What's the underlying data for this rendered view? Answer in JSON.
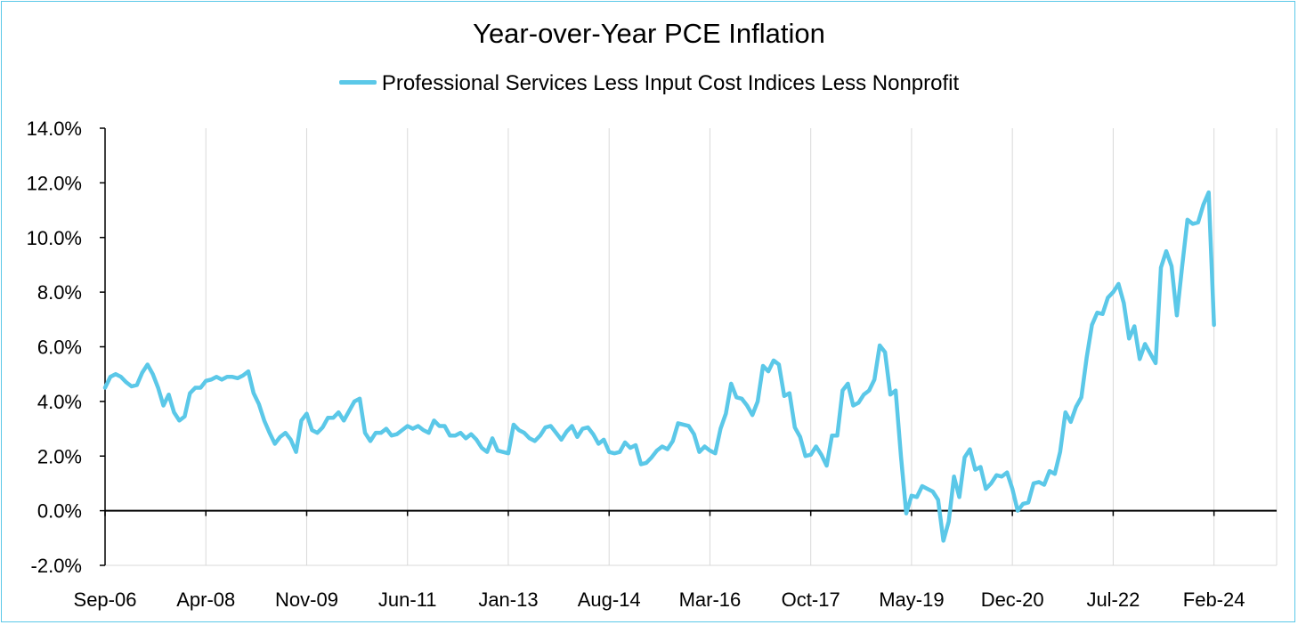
{
  "chart_data": {
    "type": "line",
    "title": "Year-over-Year PCE Inflation",
    "xlabel": "",
    "ylabel": "",
    "ylim": [
      -2.0,
      14.0
    ],
    "y_ticks": [
      -2,
      0,
      2,
      4,
      6,
      8,
      10,
      12,
      14
    ],
    "y_tick_labels": [
      "-2.0%",
      "0.0%",
      "2.0%",
      "4.0%",
      "6.0%",
      "8.0%",
      "10.0%",
      "12.0%",
      "14.0%"
    ],
    "x_ticks": [
      0,
      19,
      38,
      57,
      76,
      95,
      114,
      133,
      152,
      171,
      190,
      209
    ],
    "x_tick_labels": [
      "Sep-06",
      "Apr-08",
      "Nov-09",
      "Jun-11",
      "Jan-13",
      "Aug-14",
      "Mar-16",
      "Oct-17",
      "May-19",
      "Dec-20",
      "Jul-22",
      "Feb-24"
    ],
    "grid": "vertical",
    "legend_position": "top-center",
    "series": [
      {
        "name": "Professional Services Less Input Cost Indices Less Nonprofit",
        "color": "#5bc8e8",
        "start": "Sep-06",
        "frequency": "monthly",
        "values": [
          4.5,
          4.9,
          5.0,
          4.9,
          4.7,
          4.55,
          4.6,
          5.05,
          5.35,
          5.0,
          4.5,
          3.85,
          4.25,
          3.6,
          3.3,
          3.45,
          4.3,
          4.5,
          4.5,
          4.75,
          4.8,
          4.9,
          4.8,
          4.9,
          4.9,
          4.85,
          4.95,
          5.1,
          4.3,
          3.9,
          3.3,
          2.85,
          2.45,
          2.7,
          2.85,
          2.6,
          2.15,
          3.3,
          3.55,
          2.95,
          2.85,
          3.05,
          3.4,
          3.4,
          3.6,
          3.3,
          3.65,
          4.0,
          4.1,
          2.85,
          2.55,
          2.85,
          2.85,
          3.0,
          2.75,
          2.8,
          2.95,
          3.1,
          3.0,
          3.1,
          2.95,
          2.85,
          3.3,
          3.1,
          3.1,
          2.75,
          2.75,
          2.85,
          2.65,
          2.8,
          2.6,
          2.3,
          2.15,
          2.65,
          2.2,
          2.15,
          2.1,
          3.15,
          2.95,
          2.85,
          2.65,
          2.55,
          2.75,
          3.05,
          3.1,
          2.85,
          2.6,
          2.9,
          3.1,
          2.7,
          3.0,
          3.05,
          2.8,
          2.45,
          2.6,
          2.15,
          2.1,
          2.15,
          2.5,
          2.3,
          2.4,
          1.7,
          1.75,
          1.95,
          2.2,
          2.35,
          2.25,
          2.55,
          3.2,
          3.15,
          3.1,
          2.8,
          2.15,
          2.35,
          2.2,
          2.1,
          3.0,
          3.55,
          4.65,
          4.15,
          4.1,
          3.85,
          3.5,
          4.0,
          5.3,
          5.1,
          5.5,
          5.35,
          4.2,
          4.3,
          3.05,
          2.7,
          2.0,
          2.05,
          2.35,
          2.05,
          1.65,
          2.75,
          2.75,
          4.4,
          4.65,
          3.85,
          3.95,
          4.25,
          4.4,
          4.8,
          6.05,
          5.8,
          4.25,
          4.4,
          2.0,
          -0.1,
          0.55,
          0.5,
          0.9,
          0.8,
          0.7,
          0.4,
          -1.1,
          -0.4,
          1.25,
          0.5,
          1.95,
          2.25,
          1.5,
          1.6,
          0.8,
          1.0,
          1.3,
          1.25,
          1.4,
          0.8,
          0.0,
          0.25,
          0.3,
          1.0,
          1.05,
          0.95,
          1.45,
          1.35,
          2.15,
          3.6,
          3.25,
          3.8,
          4.15,
          5.6,
          6.8,
          7.25,
          7.2,
          7.8,
          8.0,
          8.3,
          7.6,
          6.3,
          6.75,
          5.55,
          6.1,
          5.75,
          5.4,
          8.9,
          9.5,
          8.95,
          7.15,
          8.95,
          10.65,
          10.5,
          10.55,
          11.2,
          11.65,
          6.8
        ]
      }
    ]
  }
}
